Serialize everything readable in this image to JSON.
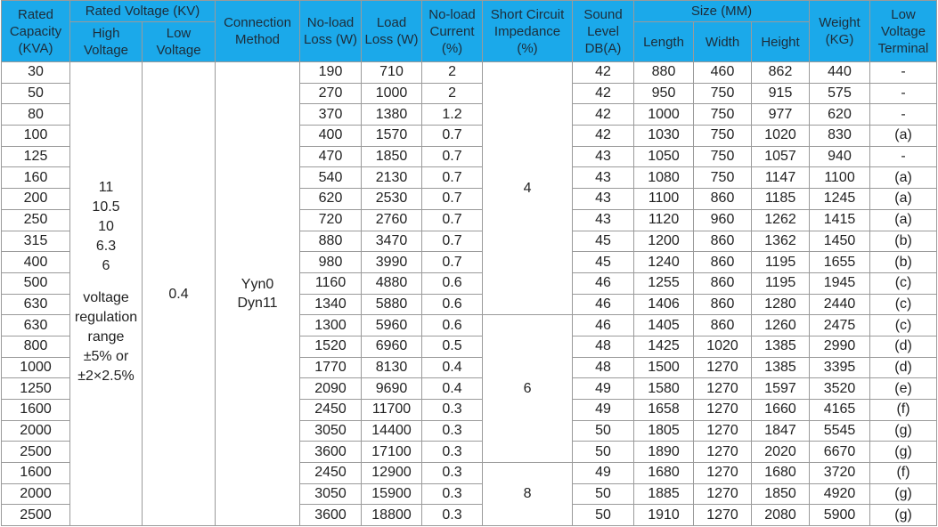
{
  "header_color": "#1ba9ea",
  "headers": {
    "rated_capacity": "Rated Capacity (KVA)",
    "rated_voltage": "Rated Voltage (KV)",
    "high_voltage": "High Voltage",
    "low_voltage": "Low Voltage",
    "connection_method": "Connection Method",
    "no_load_loss": "No-load Loss (W)",
    "load_loss": "Load Loss (W)",
    "no_load_current": "No-load Current (%)",
    "short_circuit_impedance": "Short Circuit Impedance (%)",
    "sound_level": "Sound Level DB(A)",
    "size": "Size (MM)",
    "length": "Length",
    "width": "Width",
    "height": "Height",
    "weight": "Weight (KG)",
    "low_voltage_terminal": "Low Voltage Terminal"
  },
  "merged": {
    "high_voltage_values": [
      "11",
      "10.5",
      "10",
      "6.3",
      "6"
    ],
    "high_voltage_note": [
      "voltage",
      "regulation",
      "range",
      "±5% or",
      "±2×2.5%"
    ],
    "low_voltage": "0.4",
    "connection_method": [
      "Yyn0",
      "Dyn11"
    ],
    "impedance_groups": [
      {
        "value": "4",
        "rows": 12
      },
      {
        "value": "6",
        "rows": 7
      },
      {
        "value": "8",
        "rows": 3
      }
    ]
  },
  "rows": [
    [
      "30",
      "190",
      "710",
      "2",
      "42",
      "880",
      "460",
      "862",
      "440",
      "-"
    ],
    [
      "50",
      "270",
      "1000",
      "2",
      "42",
      "950",
      "750",
      "915",
      "575",
      "-"
    ],
    [
      "80",
      "370",
      "1380",
      "1.2",
      "42",
      "1000",
      "750",
      "977",
      "620",
      "-"
    ],
    [
      "100",
      "400",
      "1570",
      "0.7",
      "42",
      "1030",
      "750",
      "1020",
      "830",
      "(a)"
    ],
    [
      "125",
      "470",
      "1850",
      "0.7",
      "43",
      "1050",
      "750",
      "1057",
      "940",
      "-"
    ],
    [
      "160",
      "540",
      "2130",
      "0.7",
      "43",
      "1080",
      "750",
      "1147",
      "1100",
      "(a)"
    ],
    [
      "200",
      "620",
      "2530",
      "0.7",
      "43",
      "1100",
      "860",
      "1185",
      "1245",
      "(a)"
    ],
    [
      "250",
      "720",
      "2760",
      "0.7",
      "43",
      "1120",
      "960",
      "1262",
      "1415",
      "(a)"
    ],
    [
      "315",
      "880",
      "3470",
      "0.7",
      "45",
      "1200",
      "860",
      "1362",
      "1450",
      "(b)"
    ],
    [
      "400",
      "980",
      "3990",
      "0.7",
      "45",
      "1240",
      "860",
      "1195",
      "1655",
      "(b)"
    ],
    [
      "500",
      "1160",
      "4880",
      "0.6",
      "46",
      "1255",
      "860",
      "1195",
      "1945",
      "(c)"
    ],
    [
      "630",
      "1340",
      "5880",
      "0.6",
      "46",
      "1406",
      "860",
      "1280",
      "2440",
      "(c)"
    ],
    [
      "630",
      "1300",
      "5960",
      "0.6",
      "46",
      "1405",
      "860",
      "1260",
      "2475",
      "(c)"
    ],
    [
      "800",
      "1520",
      "6960",
      "0.5",
      "48",
      "1425",
      "1020",
      "1385",
      "2990",
      "(d)"
    ],
    [
      "1000",
      "1770",
      "8130",
      "0.4",
      "48",
      "1500",
      "1270",
      "1385",
      "3395",
      "(d)"
    ],
    [
      "1250",
      "2090",
      "9690",
      "0.4",
      "49",
      "1580",
      "1270",
      "1597",
      "3520",
      "(e)"
    ],
    [
      "1600",
      "2450",
      "11700",
      "0.3",
      "49",
      "1658",
      "1270",
      "1660",
      "4165",
      "(f)"
    ],
    [
      "2000",
      "3050",
      "14400",
      "0.3",
      "50",
      "1805",
      "1270",
      "1847",
      "5545",
      "(g)"
    ],
    [
      "2500",
      "3600",
      "17100",
      "0.3",
      "50",
      "1890",
      "1270",
      "2020",
      "6670",
      "(g)"
    ],
    [
      "1600",
      "2450",
      "12900",
      "0.3",
      "49",
      "1680",
      "1270",
      "1680",
      "3720",
      "(f)"
    ],
    [
      "2000",
      "3050",
      "15900",
      "0.3",
      "50",
      "1885",
      "1270",
      "1850",
      "4920",
      "(g)"
    ],
    [
      "2500",
      "3600",
      "18800",
      "0.3",
      "50",
      "1910",
      "1270",
      "2080",
      "5900",
      "(g)"
    ]
  ]
}
